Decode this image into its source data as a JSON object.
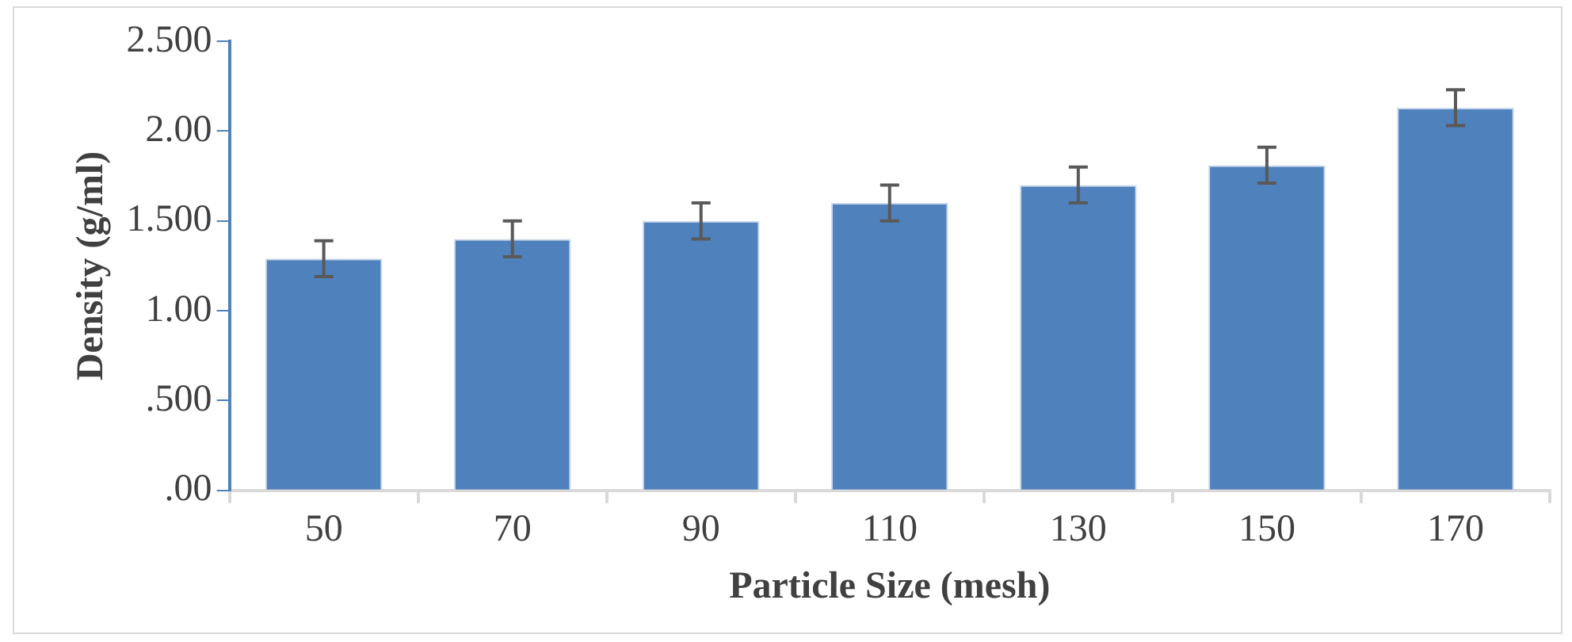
{
  "chart_data": {
    "type": "bar",
    "xlabel": "Particle Size (mesh)",
    "ylabel": "Density (g/ml)",
    "categories": [
      "50",
      "70",
      "90",
      "110",
      "130",
      "150",
      "170"
    ],
    "values": [
      1.29,
      1.4,
      1.5,
      1.6,
      1.7,
      1.81,
      2.13
    ],
    "errors": [
      0.1,
      0.1,
      0.1,
      0.1,
      0.1,
      0.1,
      0.1
    ],
    "color": "#4f81bd",
    "ylim": [
      0,
      2.5
    ],
    "yticks": [
      {
        "value": 0,
        "label": ".00"
      },
      {
        "value": 0.5,
        "label": ".500"
      },
      {
        "value": 1,
        "label": "1.00"
      },
      {
        "value": 1.5,
        "label": "1.500"
      },
      {
        "value": 2,
        "label": "2.00"
      },
      {
        "value": 2.5,
        "label": "2.500"
      }
    ],
    "grid": false,
    "legend": false
  }
}
